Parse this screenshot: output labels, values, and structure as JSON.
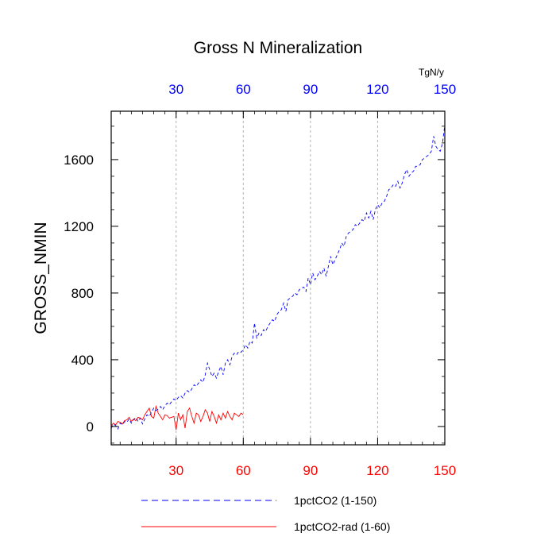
{
  "chart_data": {
    "type": "line",
    "title": "Gross N Mineralization",
    "ylabel": "GROSS_NMIN",
    "units": "TgN/y",
    "xlim": [
      1,
      150
    ],
    "ylim": [
      -110,
      1890
    ],
    "x_ticks": [
      30,
      60,
      90,
      120,
      150
    ],
    "x_tick_labels": [
      "30",
      "60",
      "90",
      "120",
      "150"
    ],
    "y_ticks": [
      0,
      400,
      800,
      1200,
      1600
    ],
    "y_tick_labels": [
      "0",
      "400",
      "800",
      "1200",
      "1600"
    ],
    "grid": "vertical dashed at x ticks",
    "legend_position": "bottom",
    "series": [
      {
        "name": "1pctCO2 (1-150)",
        "color": "#0000ff",
        "dash": "dashed",
        "x_start": 1,
        "values": [
          -10,
          15,
          5,
          -15,
          20,
          10,
          30,
          25,
          45,
          20,
          40,
          55,
          30,
          50,
          15,
          45,
          70,
          60,
          85,
          110,
          95,
          105,
          120,
          100,
          125,
          140,
          130,
          150,
          165,
          155,
          175,
          185,
          170,
          200,
          215,
          205,
          225,
          250,
          240,
          260,
          280,
          265,
          310,
          380,
          340,
          300,
          320,
          290,
          330,
          360,
          310,
          380,
          400,
          370,
          420,
          440,
          430,
          450,
          445,
          460,
          490,
          470,
          510,
          500,
          620,
          530,
          560,
          545,
          580,
          570,
          600,
          620,
          640,
          630,
          670,
          690,
          700,
          740,
          690,
          760,
          770,
          780,
          800,
          790,
          820,
          830,
          835,
          810,
          890,
          850,
          920,
          880,
          900,
          930,
          910,
          950,
          900,
          960,
          1020,
          970,
          1000,
          1030,
          1060,
          1100,
          1080,
          1140,
          1160,
          1170,
          1180,
          1210,
          1200,
          1220,
          1240,
          1230,
          1280,
          1250,
          1290,
          1240,
          1300,
          1330,
          1310,
          1340,
          1350,
          1380,
          1420,
          1430,
          1450,
          1440,
          1470,
          1430,
          1460,
          1510,
          1540,
          1500,
          1520,
          1530,
          1560,
          1560,
          1570,
          1600,
          1610,
          1620,
          1630,
          1650,
          1740,
          1680,
          1660,
          1650,
          1700,
          1810
        ]
      },
      {
        "name": "1pctCO2-rad (1-60)",
        "color": "#ff0000",
        "dash": "solid",
        "x_start": 1,
        "values": [
          5,
          20,
          10,
          30,
          25,
          15,
          35,
          40,
          55,
          30,
          45,
          35,
          55,
          50,
          40,
          70,
          90,
          110,
          60,
          50,
          120,
          80,
          60,
          40,
          70,
          65,
          50,
          55,
          60,
          -20,
          80,
          40,
          70,
          -10,
          90,
          110,
          60,
          20,
          80,
          70,
          30,
          60,
          100,
          80,
          30,
          90,
          60,
          20,
          70,
          40,
          80,
          50,
          90,
          60,
          40,
          80,
          70,
          60,
          80,
          70
        ]
      }
    ]
  }
}
